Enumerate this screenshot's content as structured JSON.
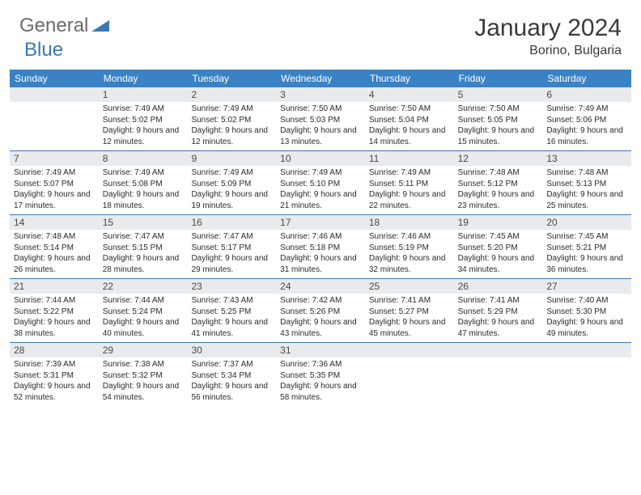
{
  "logo": {
    "general": "General",
    "blue": "Blue"
  },
  "title": {
    "month_year": "January 2024",
    "location": "Borino, Bulgaria"
  },
  "colors": {
    "header_bg": "#3a82c4",
    "header_fg": "#ffffff",
    "daynum_bg": "#e8eaec",
    "border": "#3a78b5",
    "logo_gray": "#6b6b6b",
    "logo_blue": "#3a78b5",
    "body_text": "#2a2a2a"
  },
  "day_names": [
    "Sunday",
    "Monday",
    "Tuesday",
    "Wednesday",
    "Thursday",
    "Friday",
    "Saturday"
  ],
  "weeks": [
    [
      {
        "n": "",
        "sunrise": "",
        "sunset": "",
        "daylight": ""
      },
      {
        "n": "1",
        "sunrise": "Sunrise: 7:49 AM",
        "sunset": "Sunset: 5:02 PM",
        "daylight": "Daylight: 9 hours and 12 minutes."
      },
      {
        "n": "2",
        "sunrise": "Sunrise: 7:49 AM",
        "sunset": "Sunset: 5:02 PM",
        "daylight": "Daylight: 9 hours and 12 minutes."
      },
      {
        "n": "3",
        "sunrise": "Sunrise: 7:50 AM",
        "sunset": "Sunset: 5:03 PM",
        "daylight": "Daylight: 9 hours and 13 minutes."
      },
      {
        "n": "4",
        "sunrise": "Sunrise: 7:50 AM",
        "sunset": "Sunset: 5:04 PM",
        "daylight": "Daylight: 9 hours and 14 minutes."
      },
      {
        "n": "5",
        "sunrise": "Sunrise: 7:50 AM",
        "sunset": "Sunset: 5:05 PM",
        "daylight": "Daylight: 9 hours and 15 minutes."
      },
      {
        "n": "6",
        "sunrise": "Sunrise: 7:49 AM",
        "sunset": "Sunset: 5:06 PM",
        "daylight": "Daylight: 9 hours and 16 minutes."
      }
    ],
    [
      {
        "n": "7",
        "sunrise": "Sunrise: 7:49 AM",
        "sunset": "Sunset: 5:07 PM",
        "daylight": "Daylight: 9 hours and 17 minutes."
      },
      {
        "n": "8",
        "sunrise": "Sunrise: 7:49 AM",
        "sunset": "Sunset: 5:08 PM",
        "daylight": "Daylight: 9 hours and 18 minutes."
      },
      {
        "n": "9",
        "sunrise": "Sunrise: 7:49 AM",
        "sunset": "Sunset: 5:09 PM",
        "daylight": "Daylight: 9 hours and 19 minutes."
      },
      {
        "n": "10",
        "sunrise": "Sunrise: 7:49 AM",
        "sunset": "Sunset: 5:10 PM",
        "daylight": "Daylight: 9 hours and 21 minutes."
      },
      {
        "n": "11",
        "sunrise": "Sunrise: 7:49 AM",
        "sunset": "Sunset: 5:11 PM",
        "daylight": "Daylight: 9 hours and 22 minutes."
      },
      {
        "n": "12",
        "sunrise": "Sunrise: 7:48 AM",
        "sunset": "Sunset: 5:12 PM",
        "daylight": "Daylight: 9 hours and 23 minutes."
      },
      {
        "n": "13",
        "sunrise": "Sunrise: 7:48 AM",
        "sunset": "Sunset: 5:13 PM",
        "daylight": "Daylight: 9 hours and 25 minutes."
      }
    ],
    [
      {
        "n": "14",
        "sunrise": "Sunrise: 7:48 AM",
        "sunset": "Sunset: 5:14 PM",
        "daylight": "Daylight: 9 hours and 26 minutes."
      },
      {
        "n": "15",
        "sunrise": "Sunrise: 7:47 AM",
        "sunset": "Sunset: 5:15 PM",
        "daylight": "Daylight: 9 hours and 28 minutes."
      },
      {
        "n": "16",
        "sunrise": "Sunrise: 7:47 AM",
        "sunset": "Sunset: 5:17 PM",
        "daylight": "Daylight: 9 hours and 29 minutes."
      },
      {
        "n": "17",
        "sunrise": "Sunrise: 7:46 AM",
        "sunset": "Sunset: 5:18 PM",
        "daylight": "Daylight: 9 hours and 31 minutes."
      },
      {
        "n": "18",
        "sunrise": "Sunrise: 7:46 AM",
        "sunset": "Sunset: 5:19 PM",
        "daylight": "Daylight: 9 hours and 32 minutes."
      },
      {
        "n": "19",
        "sunrise": "Sunrise: 7:45 AM",
        "sunset": "Sunset: 5:20 PM",
        "daylight": "Daylight: 9 hours and 34 minutes."
      },
      {
        "n": "20",
        "sunrise": "Sunrise: 7:45 AM",
        "sunset": "Sunset: 5:21 PM",
        "daylight": "Daylight: 9 hours and 36 minutes."
      }
    ],
    [
      {
        "n": "21",
        "sunrise": "Sunrise: 7:44 AM",
        "sunset": "Sunset: 5:22 PM",
        "daylight": "Daylight: 9 hours and 38 minutes."
      },
      {
        "n": "22",
        "sunrise": "Sunrise: 7:44 AM",
        "sunset": "Sunset: 5:24 PM",
        "daylight": "Daylight: 9 hours and 40 minutes."
      },
      {
        "n": "23",
        "sunrise": "Sunrise: 7:43 AM",
        "sunset": "Sunset: 5:25 PM",
        "daylight": "Daylight: 9 hours and 41 minutes."
      },
      {
        "n": "24",
        "sunrise": "Sunrise: 7:42 AM",
        "sunset": "Sunset: 5:26 PM",
        "daylight": "Daylight: 9 hours and 43 minutes."
      },
      {
        "n": "25",
        "sunrise": "Sunrise: 7:41 AM",
        "sunset": "Sunset: 5:27 PM",
        "daylight": "Daylight: 9 hours and 45 minutes."
      },
      {
        "n": "26",
        "sunrise": "Sunrise: 7:41 AM",
        "sunset": "Sunset: 5:29 PM",
        "daylight": "Daylight: 9 hours and 47 minutes."
      },
      {
        "n": "27",
        "sunrise": "Sunrise: 7:40 AM",
        "sunset": "Sunset: 5:30 PM",
        "daylight": "Daylight: 9 hours and 49 minutes."
      }
    ],
    [
      {
        "n": "28",
        "sunrise": "Sunrise: 7:39 AM",
        "sunset": "Sunset: 5:31 PM",
        "daylight": "Daylight: 9 hours and 52 minutes."
      },
      {
        "n": "29",
        "sunrise": "Sunrise: 7:38 AM",
        "sunset": "Sunset: 5:32 PM",
        "daylight": "Daylight: 9 hours and 54 minutes."
      },
      {
        "n": "30",
        "sunrise": "Sunrise: 7:37 AM",
        "sunset": "Sunset: 5:34 PM",
        "daylight": "Daylight: 9 hours and 56 minutes."
      },
      {
        "n": "31",
        "sunrise": "Sunrise: 7:36 AM",
        "sunset": "Sunset: 5:35 PM",
        "daylight": "Daylight: 9 hours and 58 minutes."
      },
      {
        "n": "",
        "sunrise": "",
        "sunset": "",
        "daylight": ""
      },
      {
        "n": "",
        "sunrise": "",
        "sunset": "",
        "daylight": ""
      },
      {
        "n": "",
        "sunrise": "",
        "sunset": "",
        "daylight": ""
      }
    ]
  ]
}
